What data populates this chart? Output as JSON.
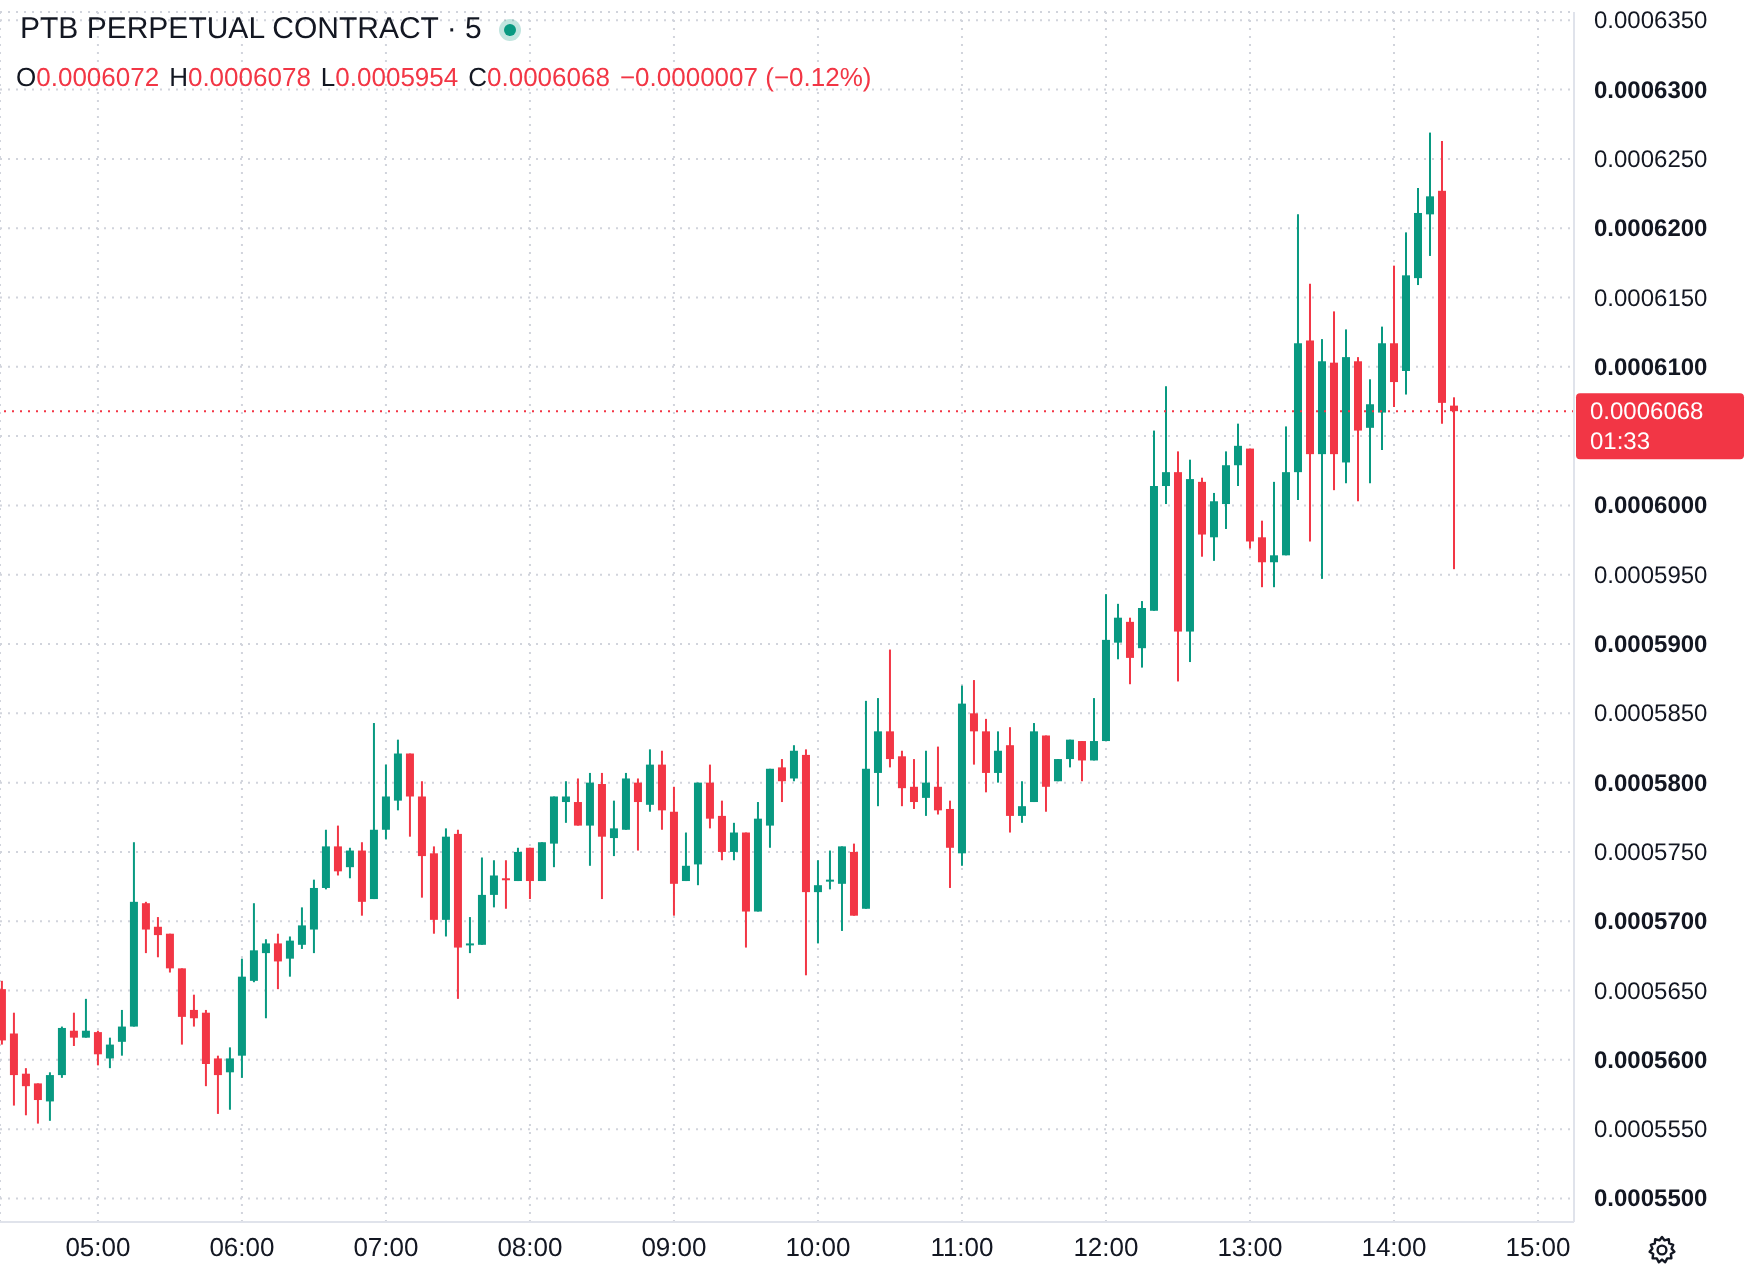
{
  "chart_data": {
    "type": "candlestick",
    "title": "PTB PERPETUAL CONTRACT · 5",
    "annotations": [
      "O0.0006072",
      "H0.0006078",
      "L0.0005954",
      "C0.0006068",
      "−0.0000007 (−0.12%)",
      "01:33"
    ],
    "x": [
      4.3333,
      4.4167,
      4.5,
      4.5833,
      4.6667,
      4.75,
      4.8333,
      4.9167,
      5,
      5.0833,
      5.1667,
      5.25,
      5.3333,
      5.4167,
      5.5,
      5.5833,
      5.6667,
      5.75,
      5.8333,
      5.9167,
      6,
      6.0833,
      6.1667,
      6.25,
      6.3333,
      6.4167,
      6.5,
      6.5833,
      6.6667,
      6.75,
      6.8333,
      6.9167,
      7,
      7.0833,
      7.1667,
      7.25,
      7.3333,
      7.4167,
      7.5,
      7.5833,
      7.6667,
      7.75,
      7.8333,
      7.9167,
      8,
      8.0833,
      8.1667,
      8.25,
      8.3333,
      8.4167,
      8.5,
      8.5833,
      8.6667,
      8.75,
      8.8333,
      8.9167,
      9,
      9.0833,
      9.1667,
      9.25,
      9.3333,
      9.4167,
      9.5,
      9.5833,
      9.6667,
      9.75,
      9.8333,
      9.9167,
      10,
      10.0833,
      10.1667,
      10.25,
      10.3333,
      10.4167,
      10.5,
      10.5833,
      10.6667,
      10.75,
      10.8333,
      10.9167,
      11,
      11.0833,
      11.1667,
      11.25,
      11.3333,
      11.4167,
      11.5,
      11.5833,
      11.6667,
      11.75,
      11.8333,
      11.9167,
      12,
      12.0833,
      12.1667,
      12.25,
      12.3333,
      12.4167,
      12.5,
      12.5833,
      12.6667,
      12.75,
      12.8333,
      12.9167,
      13,
      13.0833,
      13.1667,
      13.25,
      13.3333,
      13.4167,
      13.5,
      13.5833,
      13.6667,
      13.75,
      13.8333,
      13.9167,
      14,
      14.0833,
      14.1667,
      14.25,
      14.3333,
      14.4167
    ],
    "ohlc": [
      [
        0.0005651,
        0.0005657,
        0.0005611,
        0.0005614
      ],
      [
        0.0005619,
        0.0005634,
        0.0005567,
        0.0005589
      ],
      [
        0.000559,
        0.0005594,
        0.000556,
        0.0005581
      ],
      [
        0.0005583,
        0.0005583,
        0.0005554,
        0.0005571
      ],
      [
        0.000557,
        0.0005591,
        0.0005556,
        0.0005589
      ],
      [
        0.0005589,
        0.0005624,
        0.0005587,
        0.0005623
      ],
      [
        0.0005621,
        0.0005634,
        0.000561,
        0.0005616
      ],
      [
        0.0005616,
        0.0005644,
        0.0005616,
        0.0005621
      ],
      [
        0.000562,
        0.0005621,
        0.0005596,
        0.0005604
      ],
      [
        0.0005601,
        0.0005616,
        0.0005594,
        0.0005611
      ],
      [
        0.0005613,
        0.0005636,
        0.0005603,
        0.0005624
      ],
      [
        0.0005624,
        0.0005757,
        0.0005624,
        0.0005714
      ],
      [
        0.0005713,
        0.0005714,
        0.0005677,
        0.0005694
      ],
      [
        0.0005696,
        0.0005703,
        0.0005674,
        0.000569
      ],
      [
        0.0005691,
        0.0005691,
        0.0005663,
        0.0005666
      ],
      [
        0.0005666,
        0.0005666,
        0.0005611,
        0.0005631
      ],
      [
        0.0005636,
        0.0005647,
        0.0005624,
        0.000563
      ],
      [
        0.0005634,
        0.0005636,
        0.0005581,
        0.0005597
      ],
      [
        0.0005601,
        0.0005603,
        0.0005561,
        0.0005589
      ],
      [
        0.0005591,
        0.0005609,
        0.0005564,
        0.0005601
      ],
      [
        0.0005603,
        0.0005673,
        0.0005587,
        0.000566
      ],
      [
        0.0005657,
        0.0005713,
        0.0005656,
        0.0005679
      ],
      [
        0.0005677,
        0.0005687,
        0.000563,
        0.0005684
      ],
      [
        0.0005684,
        0.0005691,
        0.0005651,
        0.0005671
      ],
      [
        0.0005673,
        0.0005689,
        0.000566,
        0.0005686
      ],
      [
        0.0005683,
        0.000571,
        0.000568,
        0.0005697
      ],
      [
        0.0005694,
        0.000573,
        0.0005677,
        0.0005724
      ],
      [
        0.0005724,
        0.0005766,
        0.0005723,
        0.0005754
      ],
      [
        0.0005754,
        0.0005769,
        0.0005733,
        0.0005736
      ],
      [
        0.0005739,
        0.0005753,
        0.0005731,
        0.0005751
      ],
      [
        0.0005751,
        0.0005757,
        0.0005704,
        0.0005714
      ],
      [
        0.0005716,
        0.0005843,
        0.0005716,
        0.0005766
      ],
      [
        0.0005766,
        0.0005813,
        0.0005759,
        0.000579
      ],
      [
        0.0005787,
        0.0005831,
        0.000578,
        0.0005821
      ],
      [
        0.0005821,
        0.0005821,
        0.0005761,
        0.000579
      ],
      [
        0.000579,
        0.0005801,
        0.0005717,
        0.0005747
      ],
      [
        0.0005749,
        0.0005754,
        0.0005691,
        0.0005701
      ],
      [
        0.0005701,
        0.0005767,
        0.0005689,
        0.0005761
      ],
      [
        0.0005763,
        0.0005766,
        0.0005644,
        0.0005681
      ],
      [
        0.0005683,
        0.0005703,
        0.0005677,
        0.0005684
      ],
      [
        0.0005683,
        0.0005746,
        0.0005683,
        0.0005719
      ],
      [
        0.0005719,
        0.0005744,
        0.000571,
        0.0005733
      ],
      [
        0.0005731,
        0.0005744,
        0.0005709,
        0.000573
      ],
      [
        0.0005729,
        0.0005753,
        0.0005729,
        0.000575
      ],
      [
        0.0005753,
        0.0005753,
        0.0005716,
        0.0005729
      ],
      [
        0.0005729,
        0.0005757,
        0.0005729,
        0.0005757
      ],
      [
        0.0005756,
        0.000579,
        0.0005739,
        0.000579
      ],
      [
        0.0005786,
        0.0005801,
        0.0005771,
        0.000579
      ],
      [
        0.0005786,
        0.0005803,
        0.0005769,
        0.0005769
      ],
      [
        0.0005769,
        0.0005807,
        0.000574,
        0.00058
      ],
      [
        0.0005799,
        0.0005807,
        0.0005716,
        0.0005761
      ],
      [
        0.000576,
        0.0005787,
        0.0005747,
        0.0005767
      ],
      [
        0.0005766,
        0.0005807,
        0.0005766,
        0.0005803
      ],
      [
        0.00058,
        0.0005803,
        0.0005751,
        0.0005786
      ],
      [
        0.0005784,
        0.0005824,
        0.0005779,
        0.0005813
      ],
      [
        0.0005813,
        0.0005823,
        0.0005766,
        0.000578
      ],
      [
        0.0005779,
        0.0005797,
        0.0005704,
        0.0005727
      ],
      [
        0.0005729,
        0.0005764,
        0.0005729,
        0.000574
      ],
      [
        0.0005741,
        0.00058,
        0.0005726,
        0.00058
      ],
      [
        0.00058,
        0.0005813,
        0.0005767,
        0.0005774
      ],
      [
        0.0005776,
        0.0005787,
        0.0005744,
        0.000575
      ],
      [
        0.000575,
        0.0005771,
        0.0005744,
        0.0005764
      ],
      [
        0.0005764,
        0.0005764,
        0.0005681,
        0.0005707
      ],
      [
        0.0005707,
        0.0005786,
        0.0005707,
        0.0005774
      ],
      [
        0.0005769,
        0.000581,
        0.0005753,
        0.000581
      ],
      [
        0.0005811,
        0.0005817,
        0.0005786,
        0.0005801
      ],
      [
        0.0005803,
        0.0005827,
        0.0005801,
        0.0005823
      ],
      [
        0.000582,
        0.0005824,
        0.0005661,
        0.0005721
      ],
      [
        0.0005721,
        0.0005744,
        0.0005684,
        0.0005726
      ],
      [
        0.0005729,
        0.0005751,
        0.0005723,
        0.000573
      ],
      [
        0.0005727,
        0.0005754,
        0.0005693,
        0.0005754
      ],
      [
        0.000575,
        0.0005756,
        0.0005704,
        0.0005704
      ],
      [
        0.0005709,
        0.0005859,
        0.0005709,
        0.000581
      ],
      [
        0.0005807,
        0.0005861,
        0.0005783,
        0.0005837
      ],
      [
        0.0005837,
        0.0005896,
        0.0005811,
        0.0005817
      ],
      [
        0.0005819,
        0.0005823,
        0.0005783,
        0.0005796
      ],
      [
        0.0005797,
        0.0005817,
        0.0005781,
        0.0005786
      ],
      [
        0.0005789,
        0.0005823,
        0.0005776,
        0.00058
      ],
      [
        0.0005797,
        0.0005826,
        0.0005777,
        0.000578
      ],
      [
        0.0005781,
        0.0005787,
        0.0005724,
        0.0005753
      ],
      [
        0.0005749,
        0.000587,
        0.000574,
        0.0005857
      ],
      [
        0.000585,
        0.0005874,
        0.0005813,
        0.0005837
      ],
      [
        0.0005837,
        0.0005846,
        0.0005793,
        0.0005807
      ],
      [
        0.0005807,
        0.0005837,
        0.00058,
        0.0005823
      ],
      [
        0.0005827,
        0.000584,
        0.0005764,
        0.0005776
      ],
      [
        0.0005776,
        0.0005801,
        0.0005771,
        0.0005783
      ],
      [
        0.0005786,
        0.0005843,
        0.0005786,
        0.0005837
      ],
      [
        0.0005834,
        0.0005834,
        0.0005779,
        0.0005797
      ],
      [
        0.0005801,
        0.0005817,
        0.0005801,
        0.0005817
      ],
      [
        0.0005817,
        0.0005831,
        0.0005811,
        0.0005831
      ],
      [
        0.000583,
        0.000583,
        0.0005801,
        0.0005816
      ],
      [
        0.0005816,
        0.0005861,
        0.0005816,
        0.000583
      ],
      [
        0.000583,
        0.0005936,
        0.000583,
        0.0005903
      ],
      [
        0.0005901,
        0.0005929,
        0.0005889,
        0.0005919
      ],
      [
        0.0005916,
        0.0005919,
        0.0005871,
        0.000589
      ],
      [
        0.0005897,
        0.0005931,
        0.0005883,
        0.0005926
      ],
      [
        0.0005924,
        0.0006054,
        0.0005924,
        0.0006014
      ],
      [
        0.0006014,
        0.0006086,
        0.0006001,
        0.0006024
      ],
      [
        0.0006024,
        0.0006039,
        0.0005873,
        0.0005909
      ],
      [
        0.0005909,
        0.0006033,
        0.0005887,
        0.0006019
      ],
      [
        0.0006017,
        0.000602,
        0.0005963,
        0.0005979
      ],
      [
        0.0005977,
        0.0006009,
        0.000596,
        0.0006003
      ],
      [
        0.0006001,
        0.0006039,
        0.0005983,
        0.0006029
      ],
      [
        0.0006029,
        0.0006059,
        0.0006014,
        0.0006043
      ],
      [
        0.0006041,
        0.0006041,
        0.0005969,
        0.0005974
      ],
      [
        0.0005977,
        0.0005989,
        0.0005941,
        0.0005959
      ],
      [
        0.0005959,
        0.0006017,
        0.0005941,
        0.0005964
      ],
      [
        0.0005964,
        0.0006057,
        0.0005964,
        0.0006024
      ],
      [
        0.0006024,
        0.000621,
        0.0006004,
        0.0006117
      ],
      [
        0.0006119,
        0.000616,
        0.0005974,
        0.0006037
      ],
      [
        0.0006037,
        0.000612,
        0.0005947,
        0.0006104
      ],
      [
        0.0006103,
        0.000614,
        0.0006011,
        0.0006037
      ],
      [
        0.0006031,
        0.0006127,
        0.0006016,
        0.0006107
      ],
      [
        0.0006104,
        0.0006107,
        0.0006003,
        0.0006054
      ],
      [
        0.0006056,
        0.0006091,
        0.0006016,
        0.0006073
      ],
      [
        0.0006067,
        0.0006129,
        0.000604,
        0.0006117
      ],
      [
        0.0006117,
        0.0006173,
        0.0006071,
        0.0006089
      ],
      [
        0.0006097,
        0.0006197,
        0.000608,
        0.0006166
      ],
      [
        0.0006164,
        0.0006229,
        0.0006159,
        0.0006211
      ],
      [
        0.000621,
        0.0006269,
        0.000618,
        0.0006223
      ],
      [
        0.0006227,
        0.0006263,
        0.0006059,
        0.0006074
      ],
      [
        0.0006072,
        0.0006078,
        0.0005954,
        0.0006068
      ]
    ],
    "colors": [
      "#f23645",
      "#f23645",
      "#f23645",
      "#f23645",
      "#089981",
      "#089981",
      "#f23645",
      "#089981",
      "#f23645",
      "#089981",
      "#089981",
      "#089981",
      "#f23645",
      "#f23645",
      "#f23645",
      "#f23645",
      "#f23645",
      "#f23645",
      "#f23645",
      "#089981",
      "#089981",
      "#089981",
      "#089981",
      "#f23645",
      "#089981",
      "#089981",
      "#089981",
      "#089981",
      "#f23645",
      "#089981",
      "#f23645",
      "#089981",
      "#089981",
      "#089981",
      "#f23645",
      "#f23645",
      "#f23645",
      "#089981",
      "#f23645",
      "#089981",
      "#089981",
      "#089981",
      "#f23645",
      "#089981",
      "#f23645",
      "#089981",
      "#089981",
      "#089981",
      "#f23645",
      "#089981",
      "#f23645",
      "#089981",
      "#089981",
      "#f23645",
      "#089981",
      "#f23645",
      "#f23645",
      "#089981",
      "#089981",
      "#f23645",
      "#f23645",
      "#089981",
      "#f23645",
      "#089981",
      "#089981",
      "#f23645",
      "#089981",
      "#f23645",
      "#089981",
      "#089981",
      "#089981",
      "#f23645",
      "#089981",
      "#089981",
      "#f23645",
      "#f23645",
      "#f23645",
      "#089981",
      "#f23645",
      "#f23645",
      "#089981",
      "#f23645",
      "#f23645",
      "#089981",
      "#f23645",
      "#089981",
      "#089981",
      "#f23645",
      "#089981",
      "#089981",
      "#f23645",
      "#089981",
      "#089981",
      "#089981",
      "#f23645",
      "#089981",
      "#089981",
      "#089981",
      "#f23645",
      "#089981",
      "#f23645",
      "#089981",
      "#089981",
      "#089981",
      "#f23645",
      "#f23645",
      "#089981",
      "#089981",
      "#089981",
      "#f23645",
      "#089981",
      "#f23645",
      "#089981",
      "#f23645",
      "#089981",
      "#089981",
      "#f23645",
      "#089981",
      "#089981",
      "#089981",
      "#f23645",
      "#f23645"
    ],
    "xlim": [
      4.32,
      15.25
    ],
    "xticks": [
      {
        "value": 5,
        "label": "05:00"
      },
      {
        "value": 6,
        "label": "06:00"
      },
      {
        "value": 7,
        "label": "07:00"
      },
      {
        "value": 8,
        "label": "08:00"
      },
      {
        "value": 9,
        "label": "09:00"
      },
      {
        "value": 10,
        "label": "10:00"
      },
      {
        "value": 11,
        "label": "11:00"
      },
      {
        "value": 12,
        "label": "12:00"
      },
      {
        "value": 13,
        "label": "13:00"
      },
      {
        "value": 14,
        "label": "14:00"
      },
      {
        "value": 15,
        "label": "15:00"
      }
    ],
    "ylim": [
      0.0005483,
      0.0006356
    ],
    "yticks": [
      {
        "value": 0.00055,
        "label": "0.0005500"
      },
      {
        "value": 0.000555,
        "label": "0.0005550"
      },
      {
        "value": 0.00056,
        "label": "0.0005600"
      },
      {
        "value": 0.000565,
        "label": "0.0005650"
      },
      {
        "value": 0.00057,
        "label": "0.0005700"
      },
      {
        "value": 0.000575,
        "label": "0.0005750"
      },
      {
        "value": 0.00058,
        "label": "0.0005800"
      },
      {
        "value": 0.000585,
        "label": "0.0005850"
      },
      {
        "value": 0.00059,
        "label": "0.0005900"
      },
      {
        "value": 0.000595,
        "label": "0.0005950"
      },
      {
        "value": 0.0006,
        "label": "0.0006000"
      },
      {
        "value": 0.000605,
        "label": null
      },
      {
        "value": 0.00061,
        "label": "0.0006100"
      },
      {
        "value": 0.000615,
        "label": "0.0006150"
      },
      {
        "value": 0.00062,
        "label": "0.0006200"
      },
      {
        "value": 0.000625,
        "label": "0.0006250"
      },
      {
        "value": 0.00063,
        "label": "0.0006300"
      },
      {
        "value": 0.000635,
        "label": "0.0006350"
      }
    ],
    "grid": true,
    "ref_lines": [
      {
        "axis": "y",
        "value": 0.0006068,
        "label": "0.0006068",
        "color": "#f23645",
        "line_style": "dotted"
      }
    ]
  }
}
